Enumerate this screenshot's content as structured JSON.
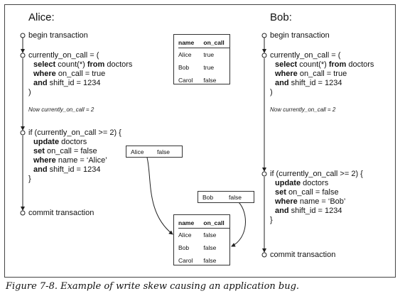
{
  "alice": {
    "title": "Alice:",
    "begin": "begin transaction",
    "query": {
      "line1": "currently_on_call = (",
      "select_kw": "select",
      "select_rest": " count(*) ",
      "from_kw": "from",
      "from_rest": " doctors",
      "where_kw": "where",
      "where_rest": " on_call = true",
      "and_kw": "and",
      "and_rest": " shift_id = 1234",
      "close": ")"
    },
    "note": "Now currently_on_call = 2",
    "update": {
      "if_line": "if (currently_on_call >= 2) {",
      "update_kw": "update",
      "update_rest": " doctors",
      "set_kw": "set",
      "set_rest": " on_call = false",
      "where_kw": "where",
      "where_rest": " name = ‘Alice’",
      "and_kw": "and",
      "and_rest": " shift_id = 1234",
      "close": "}"
    },
    "commit": "commit transaction"
  },
  "bob": {
    "title": "Bob:",
    "begin": "begin transaction",
    "query": {
      "line1": "currently_on_call = (",
      "select_kw": "select",
      "select_rest": " count(*) ",
      "from_kw": "from",
      "from_rest": " doctors",
      "where_kw": "where",
      "where_rest": " on_call = true",
      "and_kw": "and",
      "and_rest": " shift_id = 1234",
      "close": ")"
    },
    "note": "Now currently_on_call = 2",
    "update": {
      "if_line": "if (currently_on_call >= 2) {",
      "update_kw": "update",
      "update_rest": " doctors",
      "set_kw": "set",
      "set_rest": " on_call = false",
      "where_kw": "where",
      "where_rest": " name = ‘Bob’",
      "and_kw": "and",
      "and_rest": " shift_id = 1234",
      "close": "}"
    },
    "commit": "commit transaction"
  },
  "table_before": {
    "headers": [
      "name",
      "on_call"
    ],
    "rows": [
      [
        "Alice",
        "true"
      ],
      [
        "Bob",
        "true"
      ],
      [
        "Carol",
        "false"
      ]
    ]
  },
  "table_after": {
    "headers": [
      "name",
      "on_call"
    ],
    "rows": [
      [
        "Alice",
        "false"
      ],
      [
        "Bob",
        "false"
      ],
      [
        "Carol",
        "false"
      ]
    ]
  },
  "write_alice": {
    "name": "Alice",
    "value": "false"
  },
  "write_bob": {
    "name": "Bob",
    "value": "false"
  },
  "caption": "Figure 7-8. Example of write skew causing an application bug."
}
